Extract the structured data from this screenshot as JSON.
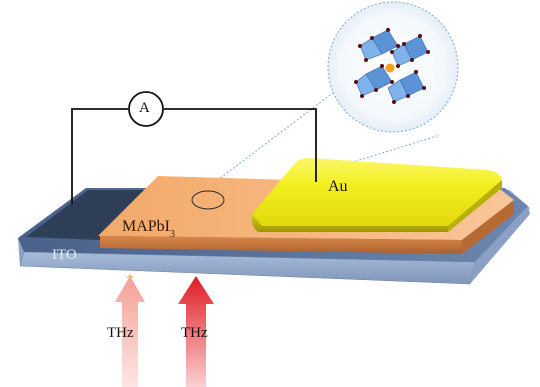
{
  "labels": {
    "ito": "ITO",
    "perovskite_main": "MAPbI",
    "perovskite_sub": "3",
    "gold": "Au",
    "ammeter": "A",
    "thz_left": "THz",
    "thz_right": "THz"
  },
  "colors": {
    "ito_top": "#566f95",
    "ito_front": "#9bb0cf",
    "ito_side": "#7f97bd",
    "electrode_dark": "#2f3f58",
    "perovskite_top": "#f0a465",
    "perovskite_front": "#c9773b",
    "gold_top": "#f1f02a",
    "gold_front": "#cfc70f",
    "lattice_octahedron": "#5f9fe0",
    "lattice_center_atom": "#f2a31b",
    "thz_beam_left": "#f6b0a8",
    "thz_beam_right": "#e8202a",
    "circuit_wire": "#111111"
  }
}
